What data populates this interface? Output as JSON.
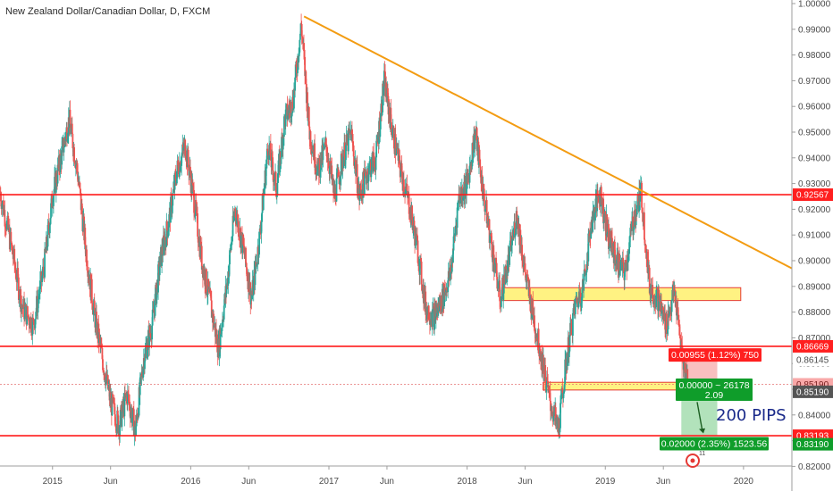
{
  "chart_data": {
    "type": "line",
    "title": "New Zealand Dollar/Canadian Dollar, D, FXCM",
    "ylim": [
      0.815,
      1.0
    ],
    "y_ticks": [
      "1.00000",
      "0.99000",
      "0.98000",
      "0.97000",
      "0.96000",
      "0.95000",
      "0.94000",
      "0.93000",
      "0.92000",
      "0.91000",
      "0.90000",
      "0.89000",
      "0.88000",
      "0.87000",
      "0.86000",
      "0.85000",
      "0.84000",
      "0.83000",
      "0.82000"
    ],
    "x_ticks": [
      "2015",
      "Jun",
      "2016",
      "Jun",
      "2017",
      "Jun",
      "2018",
      "Jun",
      "2019",
      "Jun",
      "2020"
    ],
    "x_tick_t": [
      2015.0,
      2015.42,
      2016.0,
      2016.42,
      2017.0,
      2017.42,
      2018.0,
      2018.42,
      2019.0,
      2019.42,
      2020.0
    ],
    "xlim": [
      2014.62,
      2020.35
    ],
    "series": [
      {
        "x": [
          2014.62,
          2014.7,
          2014.78,
          2014.86,
          2014.94,
          2015.0,
          2015.06,
          2015.12,
          2015.18,
          2015.24,
          2015.3,
          2015.36,
          2015.42,
          2015.48,
          2015.54,
          2015.6,
          2015.66,
          2015.72,
          2015.78,
          2015.84,
          2015.9,
          2015.96,
          2016.02,
          2016.08,
          2016.14,
          2016.2,
          2016.26,
          2016.32,
          2016.38,
          2016.44,
          2016.5,
          2016.56,
          2016.62,
          2016.68,
          2016.74,
          2016.8,
          2016.86,
          2016.92,
          2016.98,
          2017.04,
          2017.1,
          2017.16,
          2017.22,
          2017.28,
          2017.34,
          2017.4,
          2017.46,
          2017.52,
          2017.58,
          2017.64,
          2017.7,
          2017.76,
          2017.82,
          2017.88,
          2017.94,
          2018.0,
          2018.06,
          2018.12,
          2018.18,
          2018.24,
          2018.3,
          2018.36,
          2018.42,
          2018.48,
          2018.54,
          2018.6,
          2018.66,
          2018.72,
          2018.78,
          2018.84,
          2018.9,
          2018.96,
          2019.02,
          2019.08,
          2019.14,
          2019.2,
          2019.26,
          2019.32,
          2019.38,
          2019.44,
          2019.5,
          2019.56,
          2019.6
        ],
        "values": [
          0.927,
          0.906,
          0.882,
          0.875,
          0.898,
          0.925,
          0.94,
          0.955,
          0.935,
          0.905,
          0.88,
          0.862,
          0.845,
          0.836,
          0.848,
          0.834,
          0.862,
          0.875,
          0.9,
          0.915,
          0.935,
          0.945,
          0.925,
          0.9,
          0.884,
          0.866,
          0.89,
          0.92,
          0.905,
          0.885,
          0.91,
          0.945,
          0.928,
          0.955,
          0.962,
          0.992,
          0.95,
          0.935,
          0.945,
          0.925,
          0.94,
          0.95,
          0.925,
          0.935,
          0.94,
          0.97,
          0.95,
          0.935,
          0.922,
          0.905,
          0.882,
          0.878,
          0.885,
          0.895,
          0.925,
          0.93,
          0.95,
          0.925,
          0.905,
          0.885,
          0.9,
          0.918,
          0.895,
          0.878,
          0.862,
          0.845,
          0.834,
          0.862,
          0.882,
          0.89,
          0.915,
          0.927,
          0.91,
          0.9,
          0.895,
          0.915,
          0.927,
          0.89,
          0.885,
          0.875,
          0.888,
          0.862,
          0.852
        ]
      }
    ],
    "annotations": {
      "trendline": {
        "x": [
          2016.82,
          2020.35
        ],
        "y": [
          0.995,
          0.897
        ]
      },
      "h_lines": [
        0.92567,
        0.86669,
        0.83193
      ],
      "dotted_line": 0.8519,
      "zones": [
        {
          "x": [
            2018.25,
            2019.98
          ],
          "y": [
            0.8845,
            0.8895
          ]
        },
        {
          "x": [
            2018.55,
            2019.55
          ],
          "y": [
            0.8497,
            0.8527
          ]
        }
      ],
      "risk_box": {
        "x": [
          2019.55,
          2019.81
        ],
        "y": [
          0.8519,
          0.86145
        ]
      },
      "reward_box": {
        "x": [
          2019.55,
          2019.81
        ],
        "y": [
          0.83193,
          0.8519
        ]
      }
    },
    "price_tags": [
      {
        "label": "0.92567",
        "value": 0.92567,
        "style": "red"
      },
      {
        "label": "0.86669",
        "value": 0.86669,
        "style": "red"
      },
      {
        "label": "0.86145",
        "value": 0.86145,
        "style": "plain"
      },
      {
        "label": "0.85190",
        "value": 0.8519,
        "style": "pink"
      },
      {
        "label": "0.85190",
        "value": 0.849,
        "style": "dark"
      },
      {
        "label": "0.83193",
        "value": 0.83193,
        "style": "red"
      },
      {
        "label": "0.83190",
        "value": 0.8286,
        "style": "green"
      }
    ],
    "position_labels": {
      "stop": "0.00955 (1.12%) 750",
      "entry_line1": "0.00000 ~ 26178",
      "entry_line2": "2.09",
      "target": "0.02000 (2.35%) 1523.56",
      "pips": "200 PIPS",
      "marker_count": "11"
    },
    "colors": {
      "up": "#26a69a",
      "down": "#ef5350",
      "trend": "#f39c12",
      "level": "#ff1a1a",
      "zone_fill": "#ffee58",
      "stop": "#ff1f1f",
      "target": "#0f9d2a"
    }
  }
}
